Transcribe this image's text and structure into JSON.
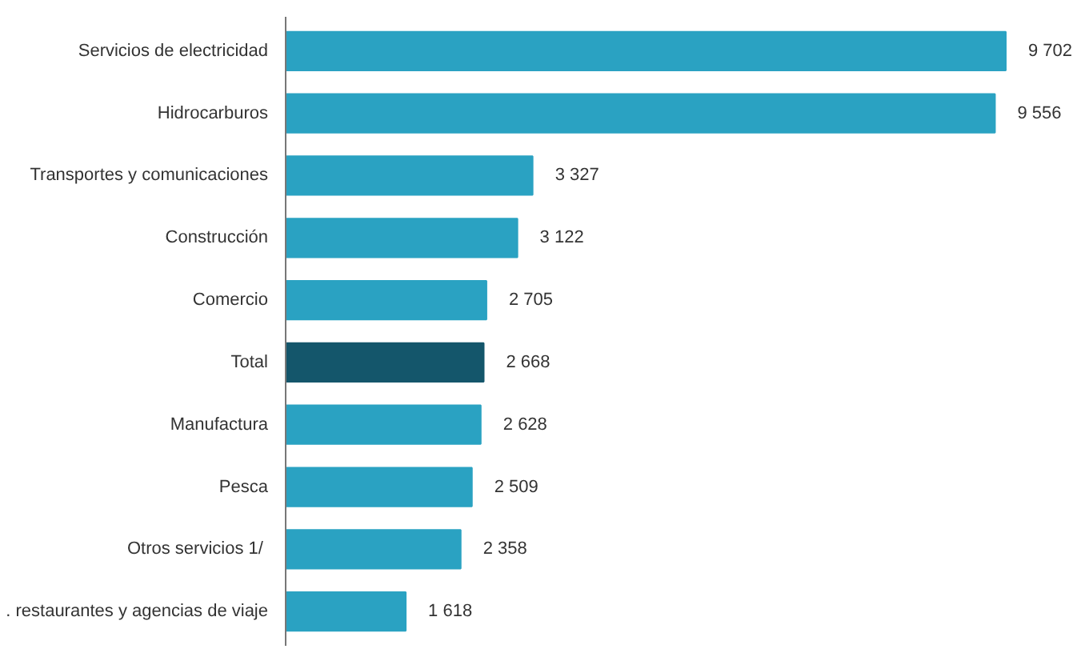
{
  "chart_data": {
    "type": "bar",
    "orientation": "horizontal",
    "categories": [
      "Servicios de electricidad",
      "Hidrocarburos",
      "Transportes y comunicaciones",
      "Construcción",
      "Comercio",
      "Total",
      "Manufactura",
      "Pesca",
      "Otros servicios  1/",
      ". restaurantes y agencias de viaje"
    ],
    "values": [
      9702,
      9556,
      3327,
      3122,
      2705,
      2668,
      2628,
      2509,
      2358,
      1618
    ],
    "colors": [
      "#2aa2c2",
      "#2aa2c2",
      "#2aa2c2",
      "#2aa2c2",
      "#2aa2c2",
      "#14566b",
      "#2aa2c2",
      "#2aa2c2",
      "#2aa2c2",
      "#2aa2c2"
    ],
    "value_labels": [
      "9 702",
      "9 556",
      "3 327",
      "3 122",
      "2 705",
      "2 668",
      "2 628",
      "2 509",
      "2 358",
      "1 618"
    ],
    "grid": false
  }
}
